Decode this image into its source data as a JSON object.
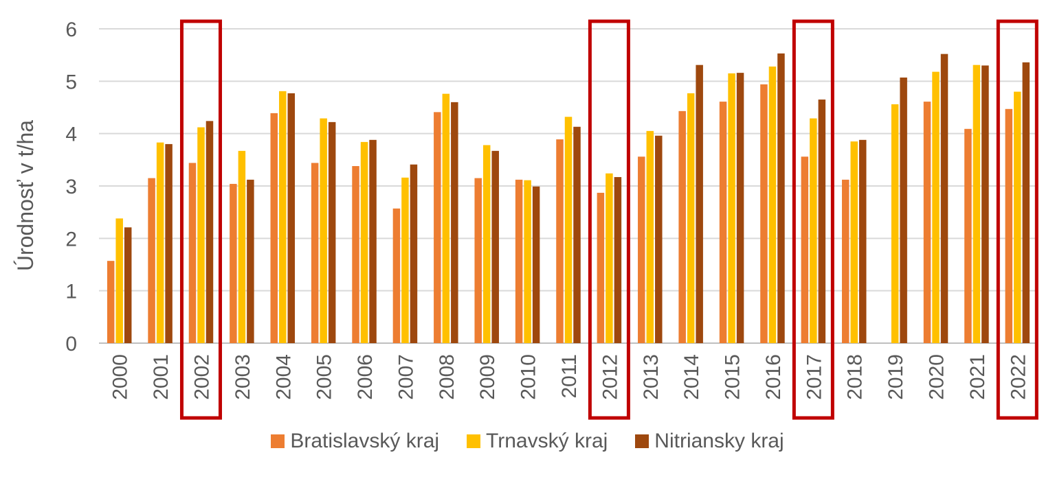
{
  "chart_data": {
    "type": "bar",
    "ylabel": "Úrodnosť v t/ha",
    "xlabel": "",
    "ylim": [
      0,
      6
    ],
    "yticks": [
      0,
      1,
      2,
      3,
      4,
      5,
      6
    ],
    "grid": true,
    "legend_position": "bottom",
    "categories": [
      "2000",
      "2001",
      "2002",
      "2003",
      "2004",
      "2005",
      "2006",
      "2007",
      "2008",
      "2009",
      "2010",
      "2011",
      "2012",
      "2013",
      "2014",
      "2015",
      "2016",
      "2017",
      "2018",
      "2019",
      "2020",
      "2021",
      "2022"
    ],
    "highlighted_categories": [
      "2002",
      "2012",
      "2017",
      "2022"
    ],
    "highlight_color": "#C00000",
    "series": [
      {
        "name": "Bratislavský kraj",
        "color": "#ED7D31",
        "values": [
          1.57,
          3.15,
          3.44,
          3.04,
          4.39,
          3.44,
          3.38,
          2.57,
          4.41,
          3.15,
          3.12,
          3.89,
          2.87,
          3.56,
          4.43,
          4.61,
          4.94,
          3.56,
          3.12,
          null,
          4.61,
          4.09,
          4.47
        ]
      },
      {
        "name": "Trnavský kraj",
        "color": "#FFC000",
        "values": [
          2.38,
          3.83,
          4.12,
          3.67,
          4.81,
          4.29,
          3.84,
          3.16,
          4.76,
          3.78,
          3.11,
          4.32,
          3.24,
          4.05,
          4.77,
          5.15,
          5.28,
          4.29,
          3.85,
          4.56,
          5.18,
          5.31,
          4.8
        ]
      },
      {
        "name": "Nitriansky kraj",
        "color": "#9E480E",
        "values": [
          2.21,
          3.8,
          4.24,
          3.12,
          4.77,
          4.22,
          3.88,
          3.41,
          4.6,
          3.67,
          2.99,
          4.13,
          3.17,
          3.96,
          5.31,
          5.16,
          5.53,
          4.65,
          3.88,
          5.07,
          5.52,
          5.3,
          5.36
        ]
      }
    ]
  }
}
